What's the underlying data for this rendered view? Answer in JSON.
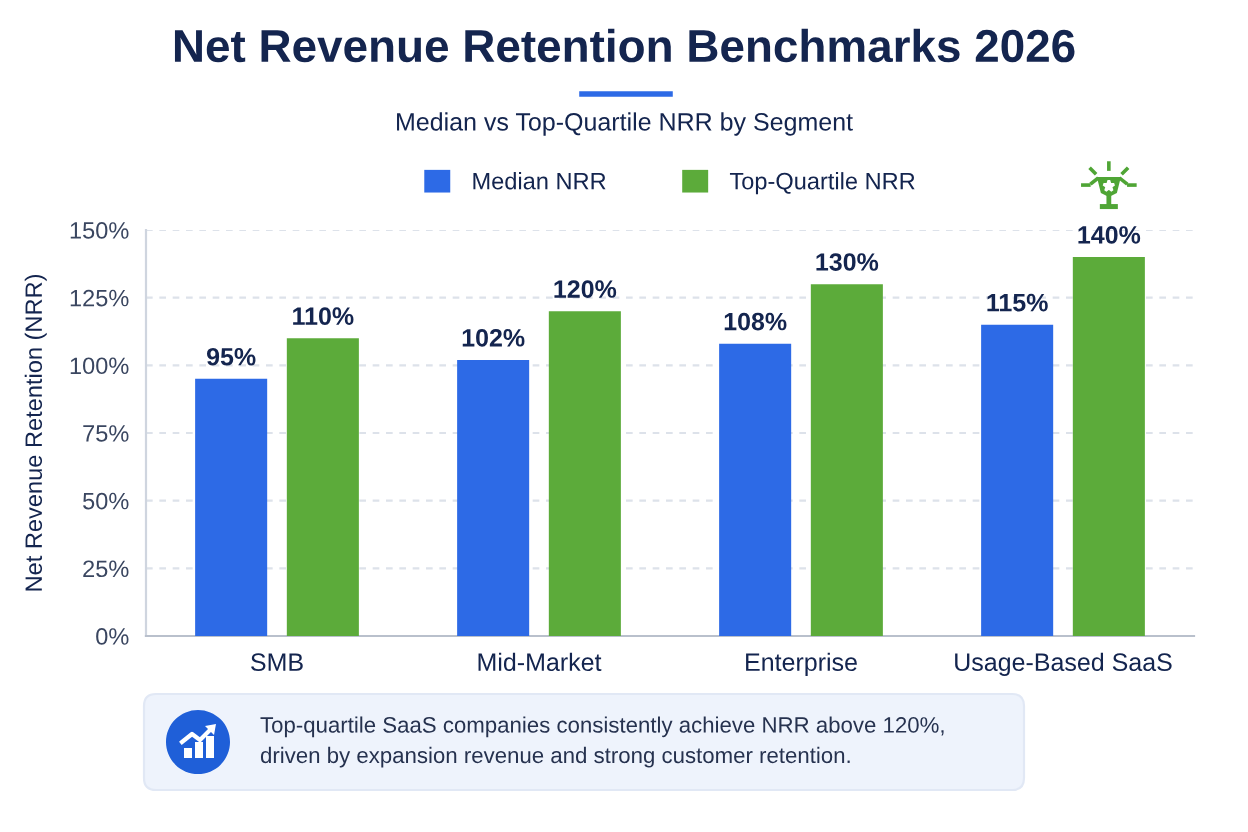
{
  "chart_data": {
    "type": "bar",
    "title": "Net Revenue Retention Benchmarks 2026",
    "subtitle": "Median vs Top-Quartile NRR by Segment",
    "ylabel": "Net Revenue Retention (NRR)",
    "categories": [
      "SMB",
      "Mid-Market",
      "Enterprise",
      "Usage-Based SaaS"
    ],
    "series": [
      {
        "name": "Median NRR",
        "color": "#2d6ae6",
        "values": [
          95,
          102,
          108,
          115
        ],
        "value_labels": [
          "95%",
          "102%",
          "108%",
          "115%"
        ]
      },
      {
        "name": "Top-Quartile NRR",
        "color": "#5cab3a",
        "values": [
          110,
          120,
          130,
          140
        ],
        "value_labels": [
          "110%",
          "120%",
          "130%",
          "140%"
        ]
      }
    ],
    "ylim": [
      0,
      150
    ],
    "yticks": [
      {
        "value": 0,
        "label": "0%"
      },
      {
        "value": 25,
        "label": "25%"
      },
      {
        "value": 50,
        "label": "50%"
      },
      {
        "value": 75,
        "label": "75%"
      },
      {
        "value": 100,
        "label": "100%"
      },
      {
        "value": 125,
        "label": "125%"
      },
      {
        "value": 150,
        "label": "150%"
      }
    ],
    "grid": "y",
    "legend": "top",
    "annotations": [
      "Top-quartile SaaS companies consistently achieve NRR above 120%, driven by expansion revenue and strong customer retention."
    ]
  }
}
